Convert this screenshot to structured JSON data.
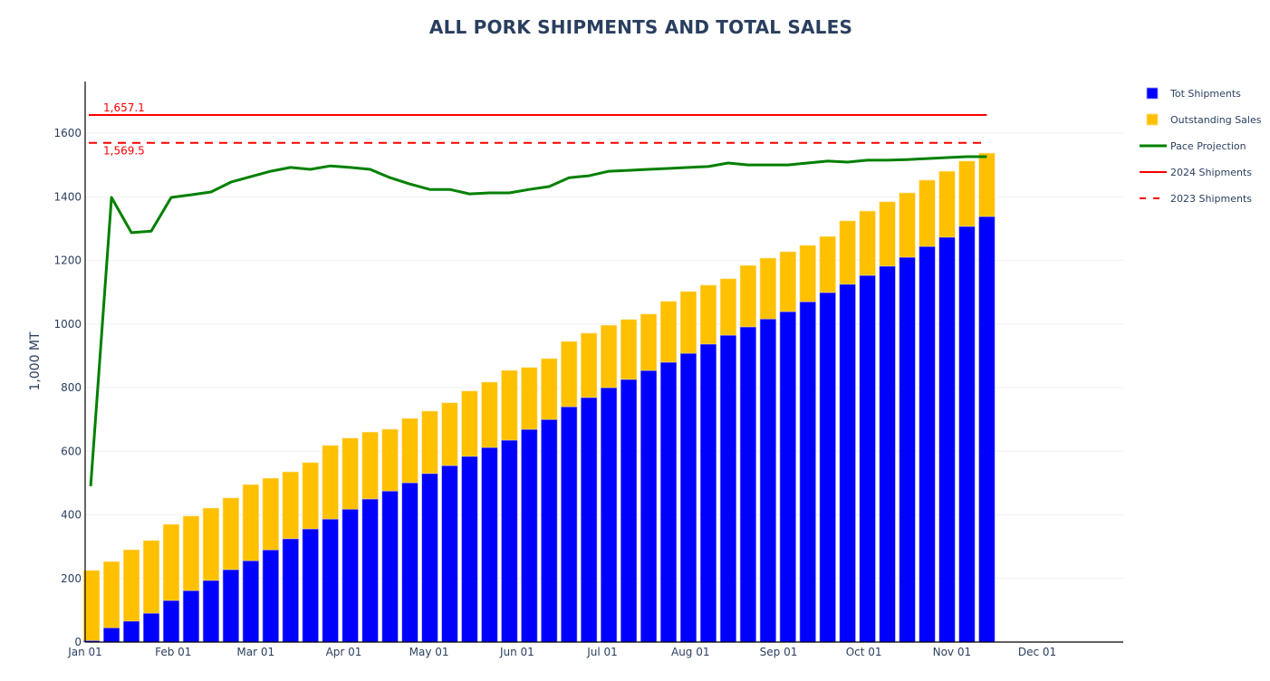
{
  "chart_data": {
    "type": "bar",
    "title": "ALL PORK SHIPMENTS AND TOTAL SALES",
    "xlabel": "",
    "ylabel": "1,000 MT",
    "ylim": [
      0,
      1760
    ],
    "y_ticks": [
      0,
      200,
      400,
      600,
      800,
      1000,
      1200,
      1400,
      1600
    ],
    "x_ticks": [
      "Jan 01",
      "Feb 01",
      "Mar 01",
      "Apr 01",
      "May 01",
      "Jun 01",
      "Jul 01",
      "Aug 01",
      "Sep 01",
      "Oct 01",
      "Nov 01",
      "Dec 01"
    ],
    "x_range_days": [
      0,
      365
    ],
    "x_tick_days": [
      0,
      31,
      60,
      91,
      121,
      152,
      182,
      213,
      244,
      274,
      305,
      335
    ],
    "grid": true,
    "barmode": "stack",
    "legend_position": "right",
    "x_days": [
      1,
      8,
      15,
      22,
      29,
      36,
      43,
      50,
      57,
      64,
      71,
      78,
      85,
      92,
      99,
      106,
      113,
      120,
      127,
      134,
      141,
      148,
      155,
      162,
      169,
      176,
      183,
      190,
      197,
      204,
      211,
      218,
      225,
      232,
      239,
      246,
      253,
      260,
      267,
      274,
      281,
      288,
      295,
      302,
      309,
      316
    ],
    "series": [
      {
        "name": "Tot Shipments",
        "type": "bar",
        "color": "#0000ff",
        "values": [
          5,
          45,
          66,
          91,
          131,
          162,
          194,
          228,
          256,
          290,
          325,
          356,
          387,
          418,
          450,
          475,
          501,
          530,
          555,
          584,
          612,
          635,
          669,
          700,
          740,
          769,
          800,
          826,
          854,
          880,
          908,
          937,
          965,
          991,
          1016,
          1039,
          1070,
          1099,
          1125,
          1153,
          1182,
          1210,
          1244,
          1273,
          1307,
          1338
        ]
      },
      {
        "name": "Outstanding Sales",
        "type": "bar",
        "color": "#ffc000",
        "values": [
          220,
          208,
          224,
          228,
          239,
          234,
          227,
          225,
          239,
          225,
          210,
          208,
          231,
          223,
          210,
          194,
          202,
          196,
          197,
          205,
          205,
          219,
          194,
          191,
          205,
          202,
          196,
          188,
          177,
          191,
          194,
          185,
          177,
          193,
          191,
          188,
          177,
          176,
          199,
          202,
          202,
          202,
          208,
          207,
          205,
          199
        ]
      },
      {
        "name": "Pace Projection",
        "type": "line",
        "color": "#008000",
        "values": [
          490,
          1398,
          1287,
          1292,
          1398,
          1406,
          1415,
          1446,
          1463,
          1480,
          1492,
          1486,
          1497,
          1492,
          1486,
          1460,
          1440,
          1423,
          1423,
          1409,
          1412,
          1412,
          1423,
          1432,
          1460,
          1466,
          1480,
          1483,
          1486,
          1489,
          1492,
          1495,
          1506,
          1500,
          1500,
          1500,
          1506,
          1512,
          1509,
          1515,
          1515,
          1517,
          1520,
          1523,
          1526,
          1526
        ]
      },
      {
        "name": "2024 Shipments",
        "type": "hline",
        "color": "#ff0000",
        "dash": "solid",
        "value": 1657.1,
        "label": "1,657.1"
      },
      {
        "name": "2023 Shipments",
        "type": "hline",
        "color": "#ff0000",
        "dash": "dash",
        "value": 1569.5,
        "label": "1,569.5"
      }
    ]
  }
}
